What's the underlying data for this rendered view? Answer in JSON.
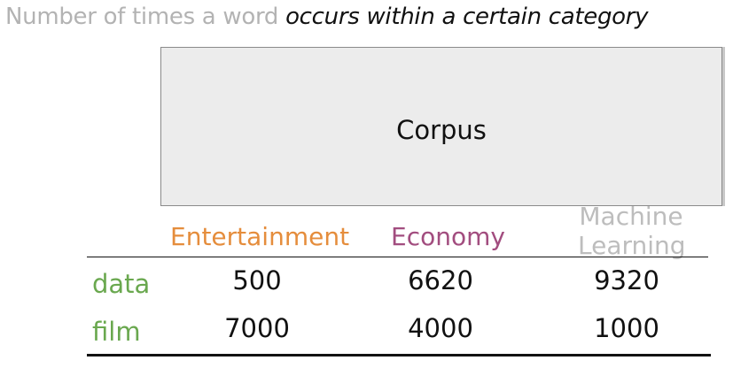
{
  "title": {
    "plain": "Number of times a word ",
    "emphasis": "occurs within a certain category"
  },
  "corpus": {
    "label": "Corpus"
  },
  "table": {
    "columns": [
      {
        "label": "Entertainment",
        "color": "#e58d3c"
      },
      {
        "label": "Economy",
        "color": "#a24d7f"
      },
      {
        "label": "Machine Learning",
        "color": "#bdbdbd"
      }
    ],
    "rows": [
      {
        "label": "data",
        "values": [
          "500",
          "6620",
          "9320"
        ]
      },
      {
        "label": "film",
        "values": [
          "7000",
          "4000",
          "1000"
        ]
      }
    ],
    "row_label_color": "#6aa84f"
  }
}
